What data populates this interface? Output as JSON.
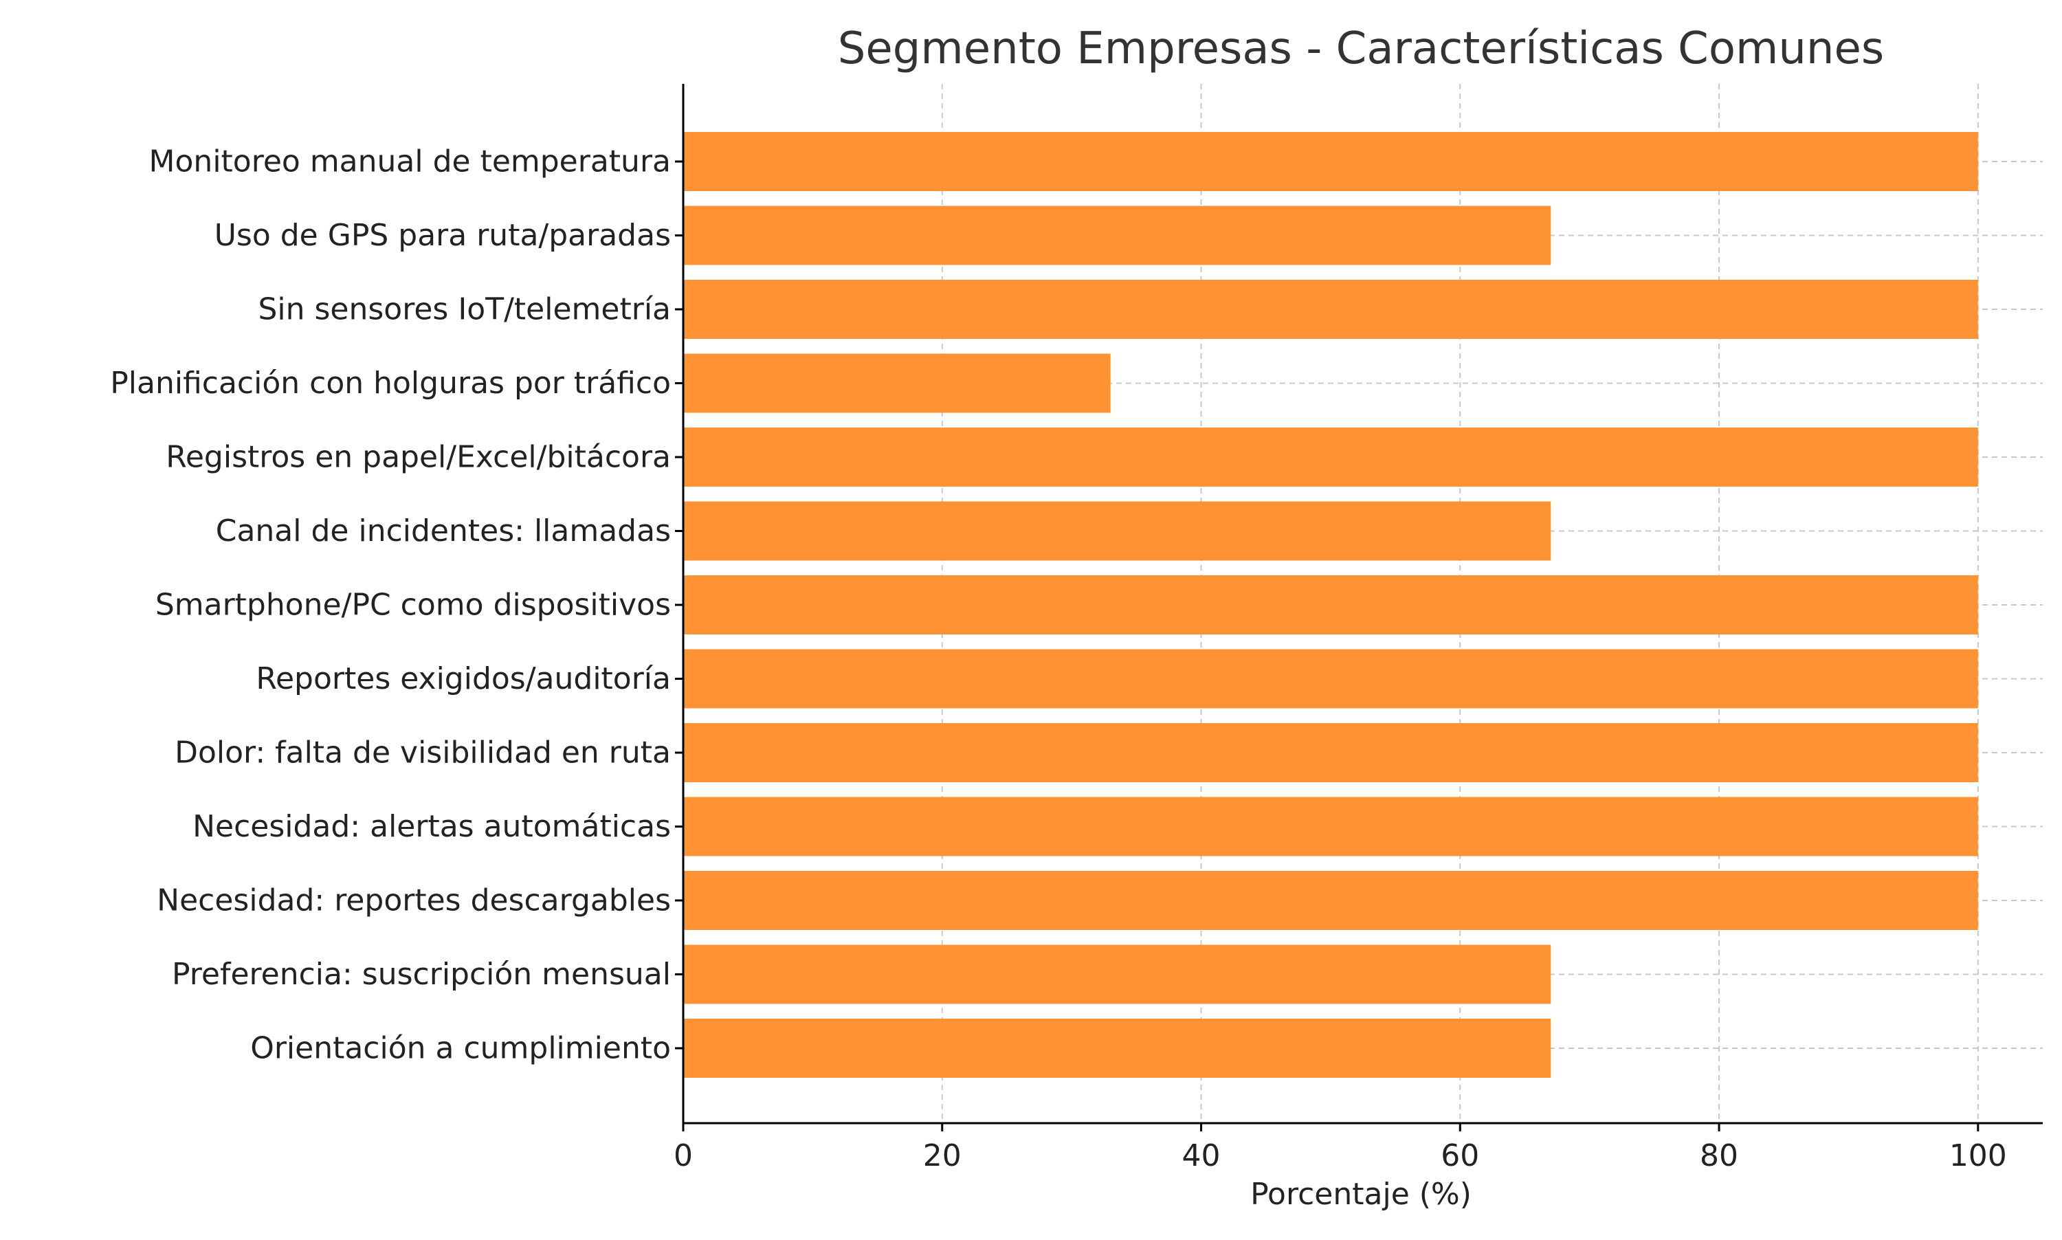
{
  "chart_data": {
    "type": "bar",
    "orientation": "horizontal",
    "title": "Segmento Empresas - Características Comunes",
    "xlabel": "Porcentaje (%)",
    "ylabel": "",
    "xlim": [
      0,
      105
    ],
    "xticks": [
      0,
      20,
      40,
      60,
      80,
      100
    ],
    "grid": true,
    "bar_color": "#ff9233",
    "categories": [
      "Monitoreo manual de temperatura",
      "Uso de GPS para ruta/paradas",
      "Sin sensores IoT/telemetría",
      "Planificación con holguras por tráfico",
      "Registros en papel/Excel/bitácora",
      "Canal de incidentes: llamadas",
      "Smartphone/PC como dispositivos",
      "Reportes exigidos/auditoría",
      "Dolor: falta de visibilidad en ruta",
      "Necesidad: alertas automáticas",
      "Necesidad: reportes descargables",
      "Preferencia: suscripción mensual",
      "Orientación a cumplimiento"
    ],
    "values": [
      100,
      67,
      100,
      33,
      100,
      67,
      100,
      100,
      100,
      100,
      100,
      67,
      67
    ]
  }
}
